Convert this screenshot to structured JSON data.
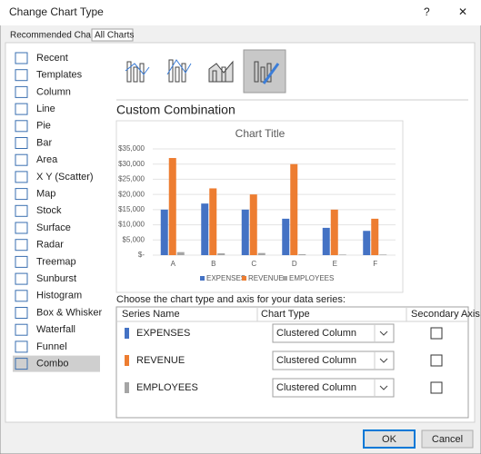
{
  "dialog": {
    "title": "Change Chart Type",
    "help": "?",
    "close": "✕"
  },
  "tabs": [
    "Recommended Charts",
    "All Charts"
  ],
  "chart_types": [
    "Recent",
    "Templates",
    "Column",
    "Line",
    "Pie",
    "Bar",
    "Area",
    "X Y (Scatter)",
    "Map",
    "Stock",
    "Surface",
    "Radar",
    "Treemap",
    "Sunburst",
    "Histogram",
    "Box & Whisker",
    "Waterfall",
    "Funnel",
    "Combo"
  ],
  "selected_type": 18,
  "section_title": "Custom Combination",
  "chart_data": {
    "type": "bar",
    "title": "Chart Title",
    "categories": [
      "A",
      "B",
      "C",
      "D",
      "E",
      "F"
    ],
    "series": [
      {
        "name": "EXPENSES",
        "color": "#4472c4",
        "values": [
          15000,
          17000,
          15000,
          12000,
          9000,
          8000
        ]
      },
      {
        "name": "REVENUE",
        "color": "#ed7d31",
        "values": [
          32000,
          22000,
          20000,
          30000,
          15000,
          12000
        ]
      },
      {
        "name": "EMPLOYEES",
        "color": "#a5a5a5",
        "values": [
          1000,
          600,
          700,
          300,
          200,
          200
        ]
      }
    ],
    "ylim": [
      0,
      35000
    ],
    "yticks": [
      {
        "value": 0,
        "label": "$-"
      },
      {
        "value": 5000,
        "label": "$5,000"
      },
      {
        "value": 10000,
        "label": "$10,000"
      },
      {
        "value": 15000,
        "label": "$15,000"
      },
      {
        "value": 20000,
        "label": "$20,000"
      },
      {
        "value": 25000,
        "label": "$25,000"
      },
      {
        "value": 30000,
        "label": "$30,000"
      },
      {
        "value": 35000,
        "label": "$35,000"
      }
    ],
    "grid": true,
    "legend": "bottom"
  },
  "series_panel": {
    "prompt": "Choose the chart type and axis for your data series:",
    "headers": [
      "Series Name",
      "Chart Type",
      "Secondary Axis"
    ],
    "rows": [
      {
        "chart_type": "Clustered Column"
      },
      {
        "chart_type": "Clustered Column"
      },
      {
        "chart_type": "Clustered Column"
      }
    ]
  },
  "buttons": [
    "OK",
    "Cancel"
  ]
}
